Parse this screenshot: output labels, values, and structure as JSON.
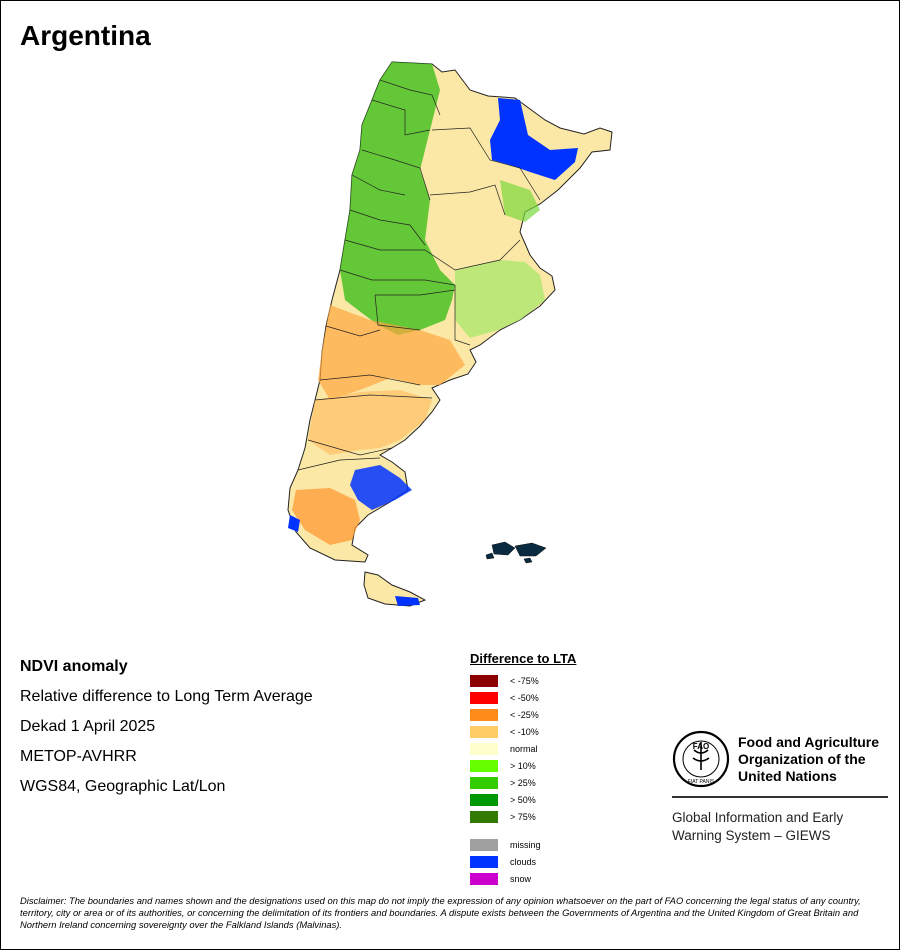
{
  "title": "Argentina",
  "info": {
    "heading": "NDVI anomaly",
    "description": "Relative difference to Long Term Average",
    "period": "Dekad 1 April 2025",
    "sensor": "METOP-AVHRR",
    "projection": "WGS84, Geographic Lat/Lon"
  },
  "legend": {
    "title": "Difference to LTA",
    "items": [
      {
        "label": "< -75%",
        "color": "#8b0000"
      },
      {
        "label": "< -50%",
        "color": "#ff0000"
      },
      {
        "label": "< -25%",
        "color": "#ff8c1a"
      },
      {
        "label": "< -10%",
        "color": "#ffcc66"
      },
      {
        "label": "normal",
        "color": "#ffffcc"
      },
      {
        "label": "> 10%",
        "color": "#66ff00"
      },
      {
        "label": "> 25%",
        "color": "#33cc00"
      },
      {
        "label": "> 50%",
        "color": "#009900"
      },
      {
        "label": "> 75%",
        "color": "#337a00"
      }
    ],
    "extra": [
      {
        "label": "missing",
        "color": "#a0a0a0"
      },
      {
        "label": "clouds",
        "color": "#0033ff"
      },
      {
        "label": "snow",
        "color": "#cc00cc"
      }
    ]
  },
  "fao": {
    "logo_text": "FAO",
    "logo_motto": "FIAT PANIS",
    "org_line1": "Food and Agriculture",
    "org_line2": "Organization of the",
    "org_line3": "United Nations",
    "giews_line1": "Global Information and Early",
    "giews_line2": "Warning System – GIEWS"
  },
  "disclaimer": "Disclaimer: The boundaries and names shown and the designations used on this map do not imply the expression of any opinion whatsoever on the part of FAO concerning the legal status of any country, territory, city or area or of its authorities, or concerning the delimitation of its frontiers and boundaries. A dispute exists between the Governments of Argentina and the United Kingdom of Great Britain and Northern Ireland concerning sovereignty over the Falkland Islands (Malvinas)."
}
